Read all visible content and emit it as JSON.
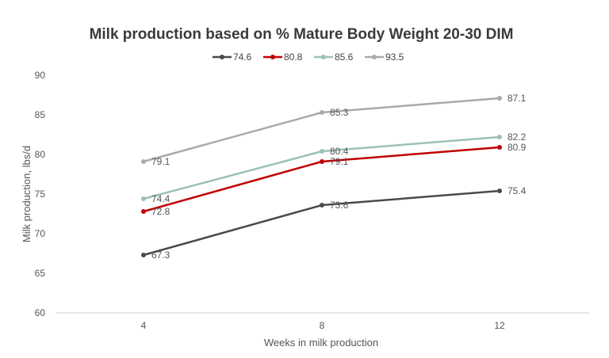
{
  "chart_data": {
    "type": "line",
    "title": "Milk production based on % Mature Body Weight 20-30 DIM",
    "xlabel": "Weeks in milk production",
    "ylabel": "Milk production, lbs/d",
    "categories": [
      "4",
      "8",
      "12"
    ],
    "ylim": [
      60,
      90
    ],
    "yticks": [
      "60",
      "65",
      "70",
      "75",
      "80",
      "85",
      "90"
    ],
    "grid": false,
    "legend_position": "top",
    "series": [
      {
        "name": "74.6",
        "color": "#4a4a4a",
        "values": [
          67.3,
          73.6,
          75.4
        ],
        "labels": [
          "67.3",
          "73.6",
          "75.4"
        ]
      },
      {
        "name": "80.8",
        "color": "#c00000",
        "values": [
          72.8,
          79.1,
          80.9
        ],
        "labels": [
          "72.8",
          "79.1",
          "80.9"
        ]
      },
      {
        "name": "85.6",
        "color": "#9bc2b4",
        "values": [
          74.4,
          80.4,
          82.2
        ],
        "labels": [
          "74.4",
          "80.4",
          "82.2"
        ]
      },
      {
        "name": "93.5",
        "color": "#a9a9a9",
        "values": [
          79.1,
          85.3,
          87.1
        ],
        "labels": [
          "79.1",
          "85.3",
          "87.1"
        ]
      }
    ]
  }
}
